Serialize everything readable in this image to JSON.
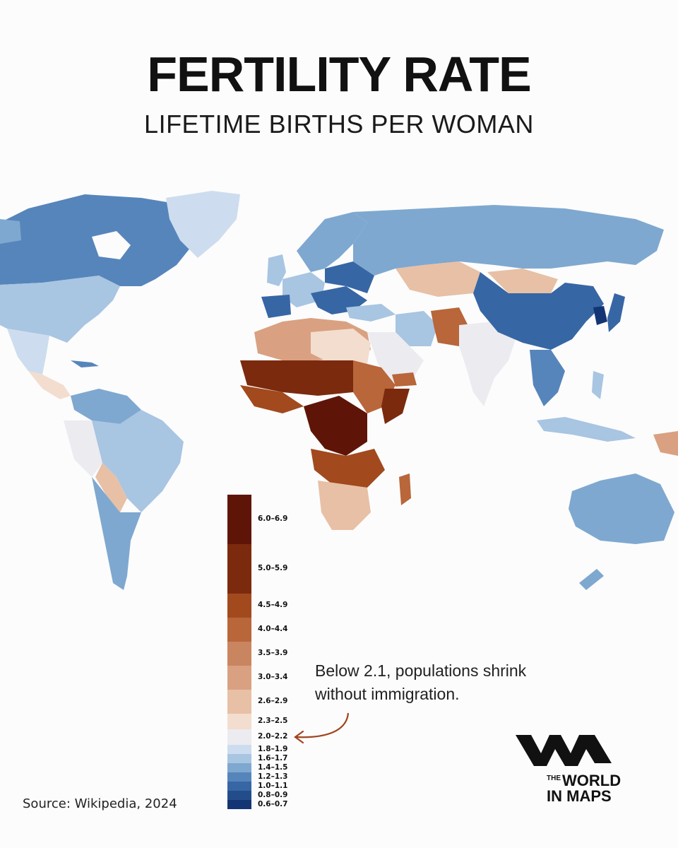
{
  "title": "FERTILITY RATE",
  "subtitle": "LIFETIME BIRTHS PER WOMAN",
  "legend": [
    {
      "label": "6.0–6.9",
      "color": "#5e1508"
    },
    {
      "label": "5.0–5.9",
      "color": "#7b2a0e"
    },
    {
      "label": "4.5–4.9",
      "color": "#a2491e"
    },
    {
      "label": "4.0–4.4",
      "color": "#b8663a"
    },
    {
      "label": "3.5–3.9",
      "color": "#c98560"
    },
    {
      "label": "3.0–3.4",
      "color": "#d9a181"
    },
    {
      "label": "2.6–2.9",
      "color": "#e7c0a6"
    },
    {
      "label": "2.3–2.5",
      "color": "#f3ddcf"
    },
    {
      "label": "2.0–2.2",
      "color": "#ecebf0"
    },
    {
      "label": "1.8–1.9",
      "color": "#cdddef"
    },
    {
      "label": "1.6–1.7",
      "color": "#a8c5e2"
    },
    {
      "label": "1.4–1.5",
      "color": "#7ea8d0"
    },
    {
      "label": "1.2–1.3",
      "color": "#5685bb"
    },
    {
      "label": "1.0–1.1",
      "color": "#3766a4"
    },
    {
      "label": "0.8–0.9",
      "color": "#234d8a"
    },
    {
      "label": "0.6–0.7",
      "color": "#143574"
    }
  ],
  "note": "Below 2.1, populations shrink without immigration.",
  "source": "Source: Wikipedia, 2024",
  "logo": {
    "line1": "THE",
    "line2": "WORLD",
    "line3": "IN MAPS"
  },
  "colors": {
    "arrow": "#a0441e",
    "ocean": "#fcfcfc"
  }
}
